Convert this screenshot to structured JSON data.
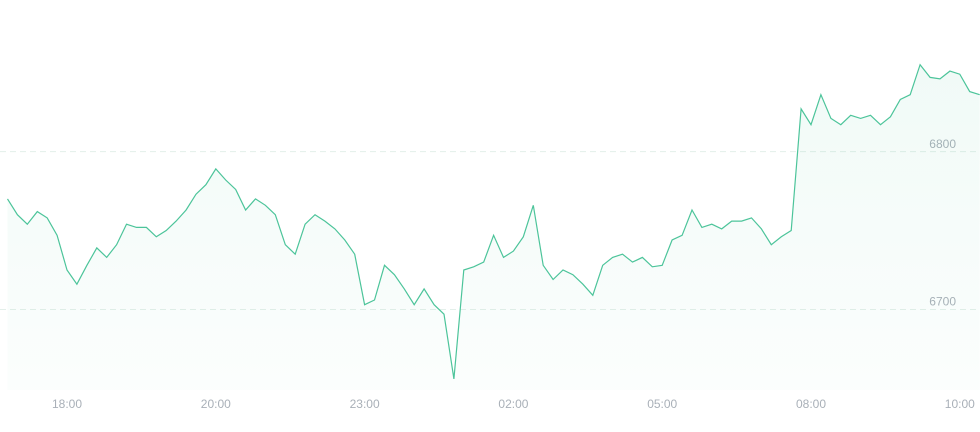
{
  "chart_data": {
    "type": "line",
    "categories": [
      null,
      null,
      null,
      null,
      null,
      null,
      "18:00",
      null,
      null,
      null,
      null,
      null,
      null,
      null,
      null,
      null,
      null,
      null,
      null,
      null,
      null,
      "20:00",
      null,
      null,
      null,
      null,
      null,
      null,
      null,
      null,
      null,
      null,
      null,
      null,
      null,
      null,
      "23:00",
      null,
      null,
      null,
      null,
      null,
      null,
      null,
      null,
      null,
      null,
      null,
      null,
      null,
      null,
      "02:00",
      null,
      null,
      null,
      null,
      null,
      null,
      null,
      null,
      null,
      null,
      null,
      null,
      null,
      null,
      "05:00",
      null,
      null,
      null,
      null,
      null,
      null,
      null,
      null,
      null,
      null,
      null,
      null,
      null,
      null,
      "08:00",
      null,
      null,
      null,
      null,
      null,
      null,
      null,
      null,
      null,
      null,
      null,
      null,
      null,
      null,
      "10:00",
      null,
      null
    ],
    "values": [
      6770,
      6760,
      6754,
      6762,
      6758,
      6747,
      6725,
      6716,
      6728,
      6739,
      6733,
      6741,
      6754,
      6752,
      6752,
      6746,
      6750,
      6756,
      6763,
      6773,
      6779,
      6789,
      6782,
      6776,
      6763,
      6770,
      6766,
      6760,
      6741,
      6735,
      6754,
      6760,
      6756,
      6751,
      6744,
      6735,
      6703,
      6706,
      6728,
      6722,
      6713,
      6703,
      6713,
      6703,
      6697,
      6656,
      6725,
      6727,
      6730,
      6747,
      6733,
      6737,
      6746,
      6766,
      6728,
      6719,
      6725,
      6722,
      6716,
      6709,
      6728,
      6733,
      6735,
      6730,
      6733,
      6727,
      6728,
      6744,
      6747,
      6763,
      6752,
      6754,
      6751,
      6756,
      6756,
      6758,
      6751,
      6741,
      6746,
      6750,
      6827,
      6817,
      6836,
      6821,
      6817,
      6823,
      6821,
      6823,
      6817,
      6822,
      6833,
      6836,
      6855,
      6847,
      6846,
      6851,
      6849,
      6838,
      6836
    ],
    "color": "#4cc49a",
    "ylim": [
      6649,
      6896
    ],
    "yticks": [
      6700,
      6800
    ],
    "grid": true
  }
}
